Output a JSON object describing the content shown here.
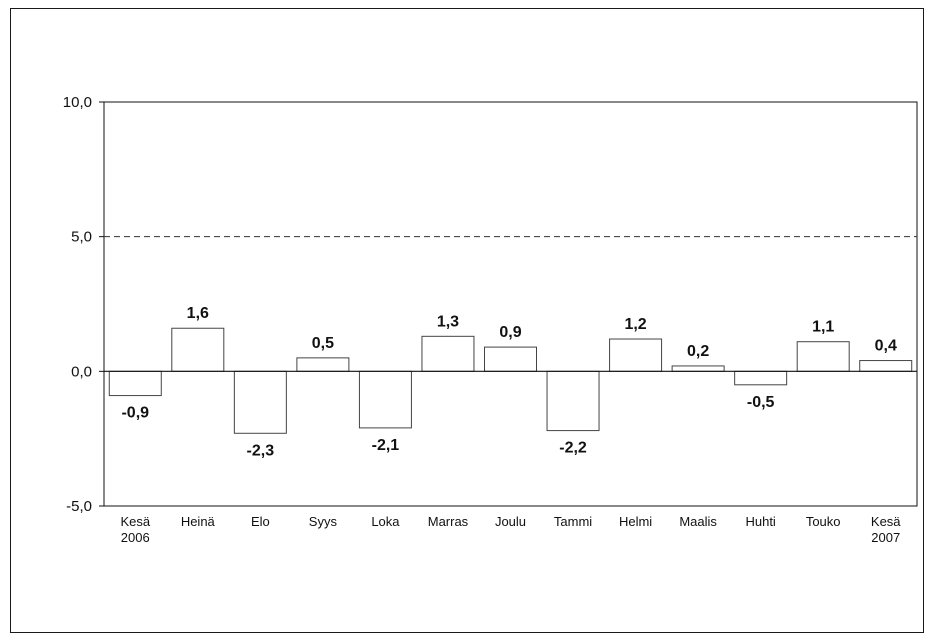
{
  "chart_data": {
    "type": "bar",
    "categories": [
      [
        "Kesä",
        "2006"
      ],
      [
        "Heinä"
      ],
      [
        "Elo"
      ],
      [
        "Syys"
      ],
      [
        "Loka"
      ],
      [
        "Marras"
      ],
      [
        "Joulu"
      ],
      [
        "Tammi"
      ],
      [
        "Helmi"
      ],
      [
        "Maalis"
      ],
      [
        "Huhti"
      ],
      [
        "Touko"
      ],
      [
        "Kesä",
        "2007"
      ]
    ],
    "values": [
      -0.9,
      1.6,
      -2.3,
      0.5,
      -2.1,
      1.3,
      0.9,
      -2.2,
      1.2,
      0.2,
      -0.5,
      1.1,
      0.4
    ],
    "data_labels": [
      "-0,9",
      "1,6",
      "-2,3",
      "0,5",
      "-2,1",
      "1,3",
      "0,9",
      "-2,2",
      "1,2",
      "0,2",
      "-0,5",
      "1,1",
      "0,4"
    ],
    "ylim": [
      -5,
      10
    ],
    "yticks": [
      {
        "value": 10,
        "label": "10,0"
      },
      {
        "value": 5,
        "label": "5,0"
      },
      {
        "value": 0,
        "label": "0,0"
      },
      {
        "value": -5,
        "label": "-5,0"
      }
    ],
    "reference_line": {
      "value": 5,
      "style": "dashed"
    },
    "title": "",
    "xlabel": "",
    "ylabel": "",
    "legend": "none",
    "grid": false,
    "colors": {
      "bar_fill": "#ffffff",
      "bar_stroke": "#444444",
      "axis": "#111111"
    }
  }
}
